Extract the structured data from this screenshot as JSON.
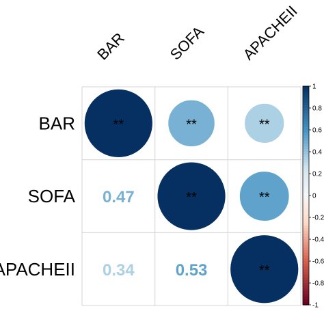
{
  "chart_data": {
    "type": "heatmap",
    "variables": [
      "BAR",
      "SOFA",
      "APACHEII"
    ],
    "matrix": [
      [
        1,
        0.47,
        0.34
      ],
      [
        0.47,
        1,
        0.53
      ],
      [
        0.34,
        0.53,
        1
      ]
    ],
    "upper_glyph": "circle",
    "lower_glyph": "number",
    "significance_marks": [
      [
        "**",
        "**",
        "**"
      ],
      [
        "",
        "**",
        "**"
      ],
      [
        "",
        "",
        "**"
      ]
    ],
    "colorbar": {
      "range": [
        -1,
        1
      ],
      "ticks": [
        "1",
        "0.8",
        "0.6",
        "0.4",
        "0.2",
        "0",
        "-0.2",
        "-0.4",
        "-0.6",
        "-0.8",
        "-1"
      ]
    },
    "palette": {
      "pos_strong": "#053061",
      "pos_mid": "#4393c3",
      "pos_light": "#d1e5f0",
      "neutral": "#f7f7f7",
      "neg_light": "#fddbc7",
      "neg_mid": "#d6604d",
      "neg_strong": "#67001f"
    },
    "grid": true
  }
}
